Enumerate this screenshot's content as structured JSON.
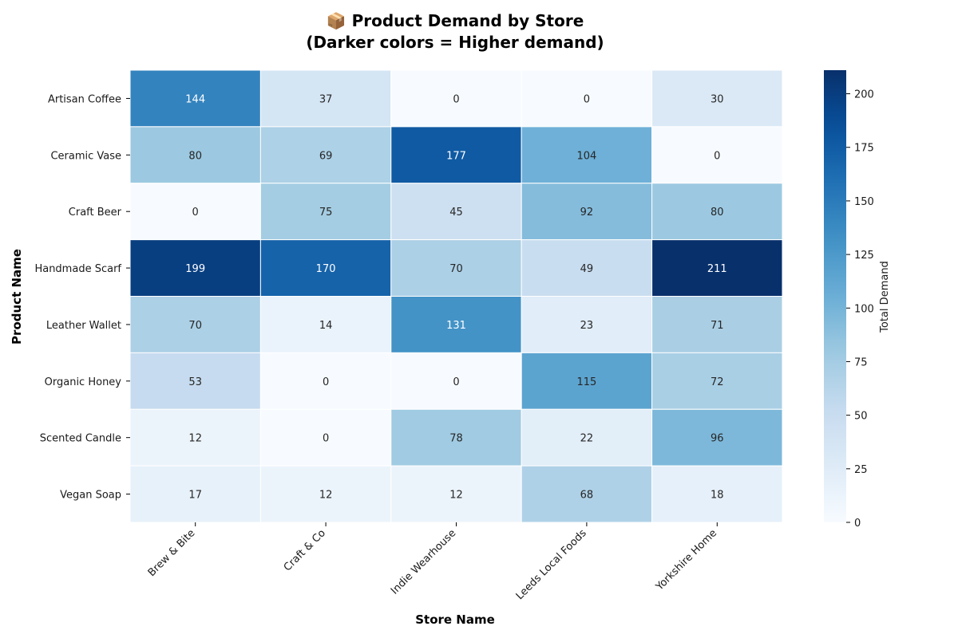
{
  "chart_data": {
    "type": "heatmap",
    "title_line1": "📦 Product Demand by Store",
    "title_line2": "(Darker colors = Higher demand)",
    "xlabel": "Store Name",
    "ylabel": "Product Name",
    "colorbar_label": "Total Demand",
    "colormap": "Blues",
    "vmin": 0,
    "vmax": 211,
    "colorbar_ticks": [
      0,
      25,
      50,
      75,
      100,
      125,
      150,
      175,
      200
    ],
    "x_categories": [
      "Brew & Bite",
      "Craft & Co",
      "Indie Wearhouse",
      "Leeds Local Foods",
      "Yorkshire Home"
    ],
    "y_categories": [
      "Artisan Coffee",
      "Ceramic Vase",
      "Craft Beer",
      "Handmade Scarf",
      "Leather Wallet",
      "Organic Honey",
      "Scented Candle",
      "Vegan Soap"
    ],
    "values": [
      [
        144,
        37,
        0,
        0,
        30
      ],
      [
        80,
        69,
        177,
        104,
        0
      ],
      [
        0,
        75,
        45,
        92,
        80
      ],
      [
        199,
        170,
        70,
        49,
        211
      ],
      [
        70,
        14,
        131,
        23,
        71
      ],
      [
        53,
        0,
        0,
        115,
        72
      ],
      [
        12,
        0,
        78,
        22,
        96
      ],
      [
        17,
        12,
        12,
        68,
        18
      ]
    ]
  }
}
